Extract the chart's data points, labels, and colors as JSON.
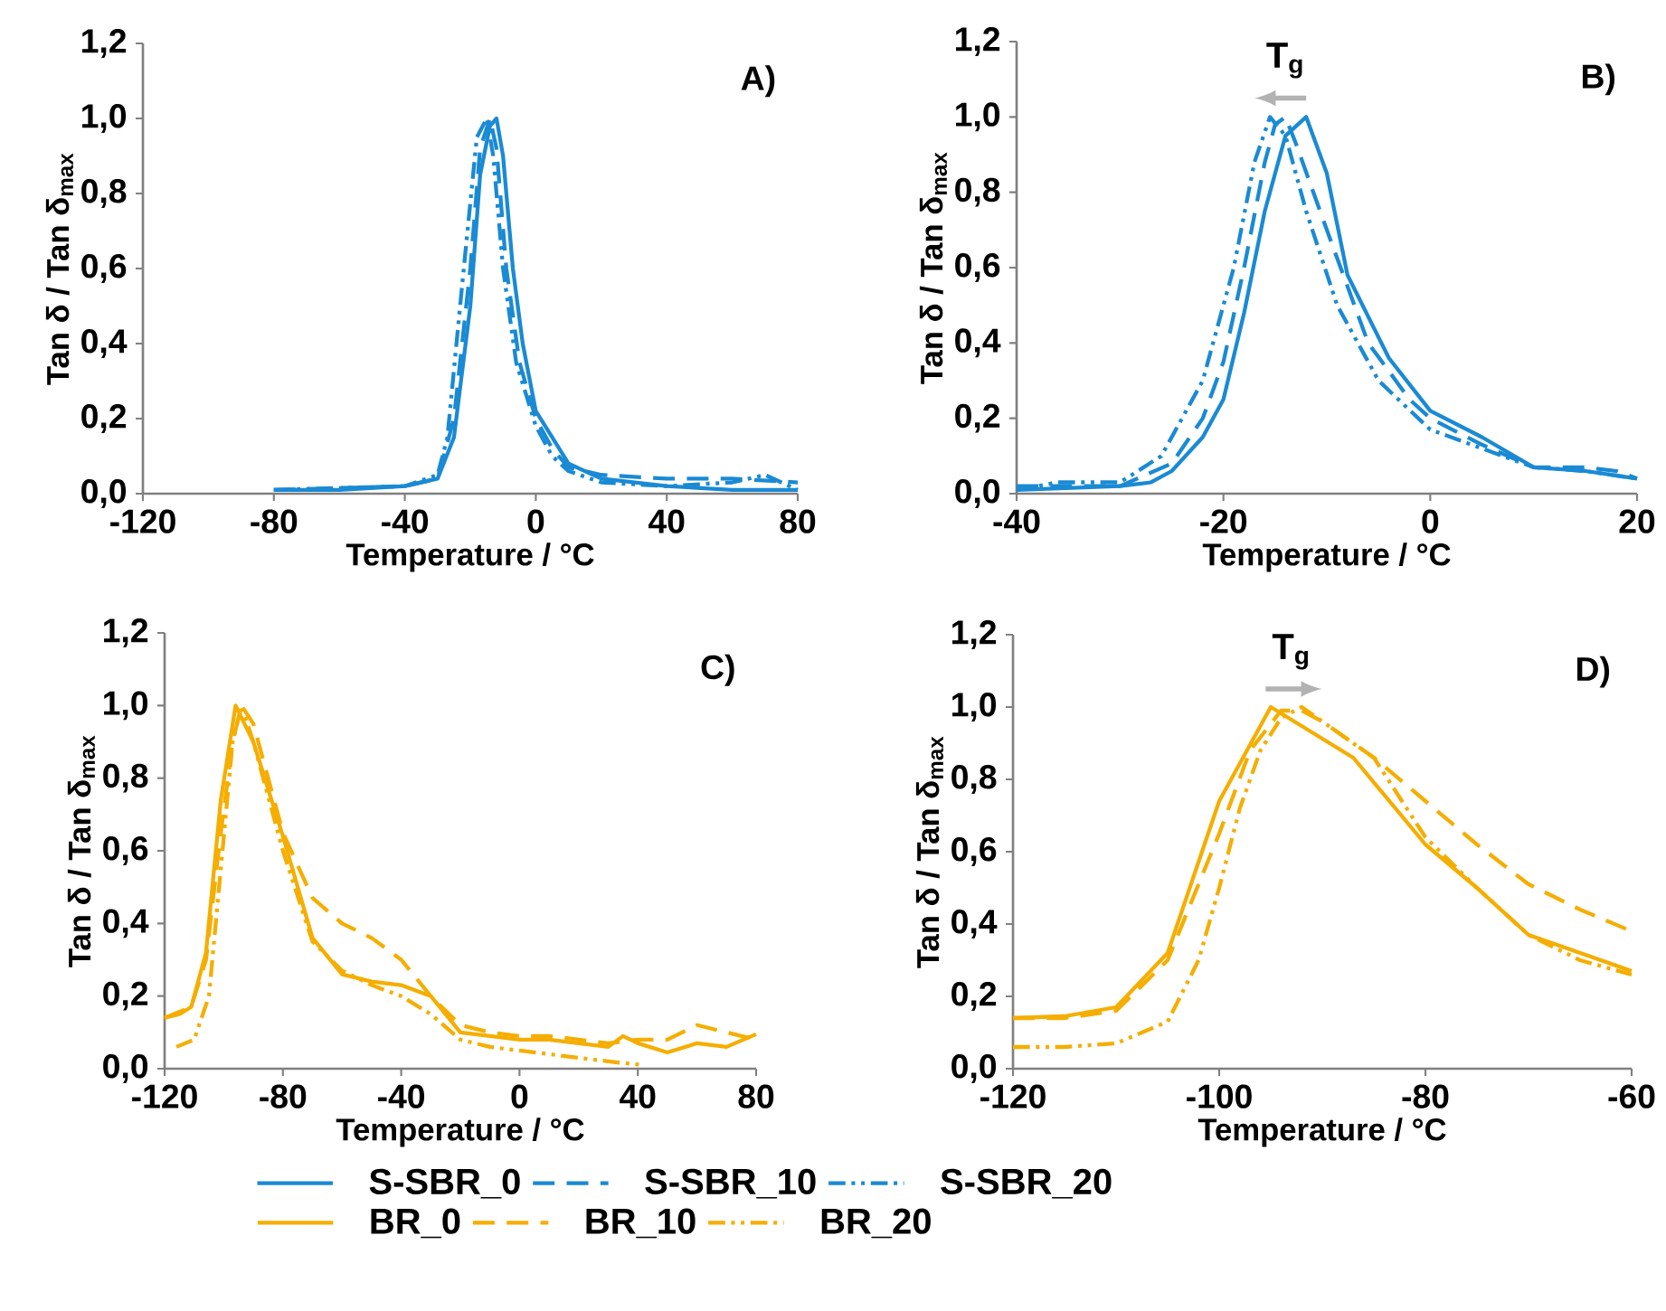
{
  "chart_data": [
    {
      "type": "line",
      "xlabel": "Temperature / °C",
      "ylabel": "Tan δ / Tan δ$_{max}$",
      "annotations": [
        "A)"
      ],
      "xlim": [
        -120,
        80
      ],
      "ylim": [
        0,
        1.2
      ],
      "xticks": [
        -120,
        -80,
        -40,
        0,
        40,
        80
      ],
      "yticks": [
        {
          "value": 0,
          "label": "0,0"
        },
        {
          "value": 0.2,
          "label": "0,2"
        },
        {
          "value": 0.4,
          "label": "0,4"
        },
        {
          "value": 0.6,
          "label": "0,6"
        },
        {
          "value": 0.8,
          "label": "0,8"
        },
        {
          "value": 1.0,
          "label": "1,0"
        },
        {
          "value": 1.2,
          "label": "1,2"
        }
      ],
      "grid": false,
      "legend": "bottom",
      "series": [
        {
          "name": "S-SBR_0",
          "color": "#1a8ad4",
          "line_style": "solid",
          "x": [
            -80,
            -60,
            -40,
            -30,
            -25,
            -20,
            -17,
            -14,
            -12,
            -10,
            -7,
            -4,
            0,
            5,
            10,
            20,
            40,
            60,
            80
          ],
          "values": [
            0.01,
            0.01,
            0.02,
            0.04,
            0.15,
            0.5,
            0.85,
            0.98,
            1.0,
            0.9,
            0.6,
            0.4,
            0.22,
            0.15,
            0.08,
            0.04,
            0.02,
            0.01,
            0.01
          ]
        },
        {
          "name": "S-SBR_10",
          "color": "#1a8ad4",
          "line_style": "dashed",
          "x": [
            -80,
            -40,
            -30,
            -25,
            -20,
            -17,
            -14,
            -12,
            -9,
            -5,
            0,
            5,
            10,
            20,
            40,
            60,
            80
          ],
          "values": [
            0.01,
            0.02,
            0.04,
            0.2,
            0.6,
            0.92,
            1.0,
            0.92,
            0.6,
            0.35,
            0.2,
            0.12,
            0.07,
            0.05,
            0.04,
            0.04,
            0.03
          ]
        },
        {
          "name": "S-SBR_20",
          "color": "#1a8ad4",
          "line_style": "dashdot",
          "x": [
            -80,
            -40,
            -30,
            -27,
            -22,
            -18,
            -15,
            -13,
            -10,
            -6,
            0,
            5,
            10,
            20,
            40,
            60,
            70,
            80
          ],
          "values": [
            0.01,
            0.02,
            0.05,
            0.15,
            0.6,
            0.95,
            1.0,
            0.9,
            0.6,
            0.35,
            0.18,
            0.1,
            0.06,
            0.03,
            0.02,
            0.03,
            0.05,
            0.01
          ]
        }
      ]
    },
    {
      "type": "line",
      "xlabel": "Temperature / °C",
      "ylabel": "Tan δ / Tan δ$_{max}$",
      "annotations": [
        "B)",
        "T$_{g}$"
      ],
      "xlim": [
        -40,
        20
      ],
      "ylim": [
        0,
        1.2
      ],
      "xticks": [
        -40,
        -20,
        0,
        20
      ],
      "yticks": [
        {
          "value": 0,
          "label": "0,0"
        },
        {
          "value": 0.2,
          "label": "0,2"
        },
        {
          "value": 0.4,
          "label": "0,4"
        },
        {
          "value": 0.6,
          "label": "0,6"
        },
        {
          "value": 0.8,
          "label": "0,8"
        },
        {
          "value": 1.0,
          "label": "1,0"
        },
        {
          "value": 1.2,
          "label": "1,2"
        }
      ],
      "grid": false,
      "series": [
        {
          "color": "#1a8ad4",
          "line_style": "solid",
          "x": [
            -40,
            -30,
            -27,
            -25,
            -22,
            -20,
            -18,
            -16,
            -14,
            -12,
            -10,
            -8,
            -4,
            0,
            5,
            10,
            15,
            20
          ],
          "values": [
            0.01,
            0.02,
            0.03,
            0.06,
            0.15,
            0.25,
            0.48,
            0.75,
            0.95,
            1.0,
            0.85,
            0.58,
            0.36,
            0.22,
            0.15,
            0.07,
            0.06,
            0.04
          ]
        },
        {
          "color": "#1a8ad4",
          "line_style": "dashed",
          "x": [
            -40,
            -30,
            -25,
            -22,
            -20,
            -18,
            -16,
            -15,
            -14,
            -13,
            -10,
            -6,
            -2,
            0,
            5,
            10,
            15,
            18,
            20
          ],
          "values": [
            0.02,
            0.02,
            0.08,
            0.2,
            0.35,
            0.6,
            0.88,
            0.98,
            1.0,
            0.93,
            0.7,
            0.4,
            0.25,
            0.2,
            0.13,
            0.07,
            0.07,
            0.06,
            0.04
          ]
        },
        {
          "color": "#1a8ad4",
          "line_style": "dashdot",
          "x": [
            -40,
            -36,
            -30,
            -26,
            -22,
            -19,
            -17,
            -15.5,
            -14,
            -12,
            -9,
            -5,
            0,
            5,
            10,
            15,
            20
          ],
          "values": [
            0.01,
            0.03,
            0.03,
            0.1,
            0.3,
            0.6,
            0.88,
            1.0,
            0.95,
            0.75,
            0.5,
            0.3,
            0.17,
            0.12,
            0.07,
            0.06,
            0.04
          ]
        }
      ]
    },
    {
      "type": "line",
      "xlabel": "Temperature / °C",
      "ylabel": "Tan δ / Tan δ$_{max}$",
      "annotations": [
        "C)"
      ],
      "xlim": [
        -120,
        80
      ],
      "ylim": [
        0,
        1.2
      ],
      "xticks": [
        -120,
        -80,
        -40,
        0,
        40,
        80
      ],
      "yticks": [
        {
          "value": 0,
          "label": "0,0"
        },
        {
          "value": 0.2,
          "label": "0,2"
        },
        {
          "value": 0.4,
          "label": "0,4"
        },
        {
          "value": 0.6,
          "label": "0,6"
        },
        {
          "value": 0.8,
          "label": "0,8"
        },
        {
          "value": 1.0,
          "label": "1,0"
        },
        {
          "value": 1.2,
          "label": "1,2"
        }
      ],
      "grid": false,
      "legend": "bottom",
      "series": [
        {
          "name": "BR_0",
          "color": "#f5ae00",
          "line_style": "solid",
          "x": [
            -120,
            -115,
            -111,
            -106,
            -101,
            -96,
            -90,
            -80,
            -70,
            -60,
            -50,
            -40,
            -30,
            -20,
            -10,
            0,
            10,
            20,
            30,
            35,
            40,
            50,
            60,
            70,
            80
          ],
          "values": [
            0.14,
            0.15,
            0.17,
            0.32,
            0.74,
            1.0,
            0.9,
            0.64,
            0.36,
            0.26,
            0.24,
            0.23,
            0.2,
            0.1,
            0.09,
            0.08,
            0.08,
            0.07,
            0.06,
            0.09,
            0.07,
            0.045,
            0.07,
            0.06,
            0.095
          ]
        },
        {
          "name": "BR_10",
          "color": "#f5ae00",
          "line_style": "dashed",
          "x": [
            -120,
            -111,
            -106,
            -101,
            -97,
            -94,
            -90,
            -85,
            -80,
            -70,
            -60,
            -50,
            -40,
            -30,
            -20,
            -10,
            0,
            10,
            20,
            30,
            40,
            50,
            60,
            70,
            80
          ],
          "values": [
            0.14,
            0.17,
            0.3,
            0.65,
            0.9,
            1.0,
            0.95,
            0.8,
            0.65,
            0.47,
            0.4,
            0.36,
            0.3,
            0.2,
            0.12,
            0.1,
            0.09,
            0.09,
            0.08,
            0.07,
            0.08,
            0.08,
            0.12,
            0.1,
            0.08
          ]
        },
        {
          "name": "BR_20",
          "color": "#f5ae00",
          "line_style": "dashdot",
          "x": [
            -116,
            -110,
            -105,
            -101,
            -97,
            -94,
            -90,
            -80,
            -70,
            -60,
            -50,
            -40,
            -30,
            -20,
            -10,
            0,
            10,
            20,
            30,
            42
          ],
          "values": [
            0.06,
            0.08,
            0.2,
            0.55,
            0.9,
            1.0,
            0.9,
            0.6,
            0.35,
            0.27,
            0.23,
            0.2,
            0.15,
            0.08,
            0.06,
            0.05,
            0.04,
            0.03,
            0.02,
            0.01
          ]
        }
      ]
    },
    {
      "type": "line",
      "xlabel": "Temperature / °C",
      "ylabel": "Tan δ / Tan δ$_{max}$",
      "annotations": [
        "D)",
        "T$_{g}$"
      ],
      "xlim": [
        -120,
        -60
      ],
      "ylim": [
        0,
        1.2
      ],
      "xticks": [
        -120,
        -100,
        -80,
        -60
      ],
      "yticks": [
        {
          "value": 0,
          "label": "0,0"
        },
        {
          "value": 0.2,
          "label": "0,2"
        },
        {
          "value": 0.4,
          "label": "0,4"
        },
        {
          "value": 0.6,
          "label": "0,6"
        },
        {
          "value": 0.8,
          "label": "0,8"
        },
        {
          "value": 1.0,
          "label": "1,0"
        },
        {
          "value": 1.2,
          "label": "1,2"
        }
      ],
      "grid": false,
      "series": [
        {
          "color": "#f5ae00",
          "line_style": "solid",
          "x": [
            -120,
            -115,
            -110,
            -105,
            -100,
            -95,
            -91,
            -87,
            -80,
            -75,
            -70,
            -60
          ],
          "values": [
            0.14,
            0.145,
            0.17,
            0.32,
            0.74,
            1.0,
            0.93,
            0.86,
            0.62,
            0.5,
            0.37,
            0.27
          ]
        },
        {
          "color": "#f5ae00",
          "line_style": "dashed",
          "x": [
            -120,
            -115,
            -110,
            -105,
            -100,
            -97,
            -94,
            -92,
            -90,
            -85,
            -80,
            -75,
            -70,
            -65,
            -60
          ],
          "values": [
            0.14,
            0.14,
            0.16,
            0.3,
            0.65,
            0.88,
            0.99,
            0.99,
            0.96,
            0.86,
            0.74,
            0.62,
            0.51,
            0.44,
            0.38
          ]
        },
        {
          "color": "#f5ae00",
          "line_style": "dashdot",
          "x": [
            -120,
            -115,
            -110,
            -105,
            -102,
            -100,
            -98,
            -96,
            -94,
            -92,
            -90,
            -85,
            -80,
            -75,
            -70,
            -65,
            -60
          ],
          "values": [
            0.06,
            0.06,
            0.07,
            0.13,
            0.3,
            0.5,
            0.72,
            0.88,
            0.97,
            1.0,
            0.96,
            0.86,
            0.64,
            0.5,
            0.37,
            0.3,
            0.26
          ]
        }
      ]
    }
  ]
}
